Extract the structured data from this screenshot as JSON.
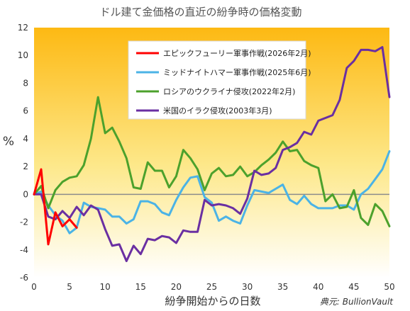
{
  "chart_data": {
    "type": "line",
    "title": "ドル建て金価格の直近の紛争時の価格変動",
    "xlabel": "紛争開始からの日数",
    "ylabel": "%",
    "source": "典元: BullionVault",
    "xlim": [
      0,
      50
    ],
    "ylim": [
      -6,
      12
    ],
    "x_ticks": [
      0,
      5,
      10,
      15,
      20,
      25,
      30,
      35,
      40,
      45,
      50
    ],
    "y_ticks": [
      -6,
      -4,
      -2,
      0,
      2,
      4,
      6,
      8,
      10,
      12
    ],
    "zero_line": true,
    "legend_position": "top-center",
    "series": [
      {
        "name": "エピックフューリー軍事作戦(2026年2月)",
        "color": "#ff0000",
        "x": [
          0,
          1,
          2,
          3,
          4,
          5,
          6
        ],
        "y": [
          0,
          1.8,
          -3.6,
          -1.3,
          -2.3,
          -1.8,
          -2.4
        ]
      },
      {
        "name": "ミッドナイトハマー軍事作戦(2025年6月)",
        "color": "#4bb3e6",
        "x": [
          0,
          1,
          2,
          3,
          4,
          5,
          6,
          7,
          8,
          9,
          10,
          11,
          12,
          13,
          14,
          15,
          16,
          17,
          18,
          19,
          20,
          21,
          22,
          23,
          24,
          25,
          26,
          27,
          28,
          29,
          30,
          31,
          32,
          33,
          34,
          35,
          36,
          37,
          38,
          39,
          40,
          41,
          42,
          43,
          44,
          45,
          46,
          47,
          48,
          49,
          50
        ],
        "y": [
          0,
          0.2,
          -0.8,
          -1.5,
          -1.9,
          -2.8,
          -2.4,
          -0.6,
          -0.9,
          -1.0,
          -1.1,
          -1.6,
          -1.6,
          -2.1,
          -1.8,
          -0.5,
          -0.5,
          -0.7,
          -1.3,
          -1.5,
          -0.4,
          0.5,
          1.2,
          1.3,
          -0.2,
          -0.6,
          -1.9,
          -1.6,
          -1.9,
          -2.1,
          -0.8,
          0.3,
          0.2,
          0.1,
          0.4,
          0.7,
          -0.4,
          -0.7,
          -0.1,
          -0.7,
          -1.0,
          -1.0,
          -1.0,
          -0.8,
          -0.8,
          -1.1,
          0,
          0.4,
          1.1,
          1.8,
          3.1
        ]
      },
      {
        "name": "ロシアのウクライナ侵攻(2022年2月)",
        "color": "#4ca12c",
        "x": [
          0,
          1,
          2,
          3,
          4,
          5,
          6,
          7,
          8,
          9,
          10,
          11,
          12,
          13,
          14,
          15,
          16,
          17,
          18,
          19,
          20,
          21,
          22,
          23,
          24,
          25,
          26,
          27,
          28,
          29,
          30,
          31,
          32,
          33,
          34,
          35,
          36,
          37,
          38,
          39,
          40,
          41,
          42,
          43,
          44,
          45,
          46,
          47,
          48,
          49,
          50
        ],
        "y": [
          0,
          0.6,
          -1.0,
          0.3,
          0.9,
          1.2,
          1.3,
          2.1,
          4.0,
          7.0,
          4.4,
          4.8,
          3.8,
          2.6,
          0.5,
          0.4,
          2.3,
          1.7,
          1.7,
          0.5,
          1.3,
          3.2,
          2.6,
          1.8,
          0.3,
          1.5,
          1.9,
          1.3,
          1.4,
          2.0,
          1.3,
          1.6,
          2.1,
          2.5,
          3.0,
          3.8,
          3.1,
          3.2,
          2.4,
          2.1,
          1.9,
          -0.5,
          0,
          -1.0,
          -0.9,
          0.3,
          -1.7,
          -2.2,
          -0.7,
          -1.2,
          -2.3
        ]
      },
      {
        "name": "米国のイラク侵攻(2003年3月)",
        "color": "#6a2fa2",
        "x": [
          0,
          1,
          2,
          3,
          4,
          5,
          6,
          7,
          8,
          9,
          10,
          11,
          12,
          13,
          14,
          15,
          16,
          17,
          18,
          19,
          20,
          21,
          22,
          23,
          24,
          25,
          26,
          27,
          28,
          29,
          30,
          31,
          32,
          33,
          34,
          35,
          36,
          37,
          38,
          39,
          40,
          41,
          42,
          43,
          44,
          45,
          46,
          47,
          48,
          49,
          50
        ],
        "y": [
          0,
          0,
          -1.6,
          -1.8,
          -1.2,
          -1.7,
          -0.9,
          -1.5,
          -0.8,
          -1.1,
          -2.5,
          -3.7,
          -3.6,
          -4.8,
          -3.7,
          -4.3,
          -3.2,
          -3.3,
          -3.0,
          -3.1,
          -3.5,
          -2.6,
          -2.7,
          -2.7,
          -0.4,
          -0.8,
          -0.7,
          -0.8,
          -1.0,
          -1.4,
          -0.3,
          1.7,
          1.4,
          1.5,
          1.9,
          3.2,
          3.4,
          3.7,
          4.5,
          4.3,
          5.3,
          5.5,
          5.7,
          6.8,
          9.1,
          9.6,
          10.4,
          10.4,
          10.3,
          10.6,
          7.0
        ]
      }
    ]
  }
}
